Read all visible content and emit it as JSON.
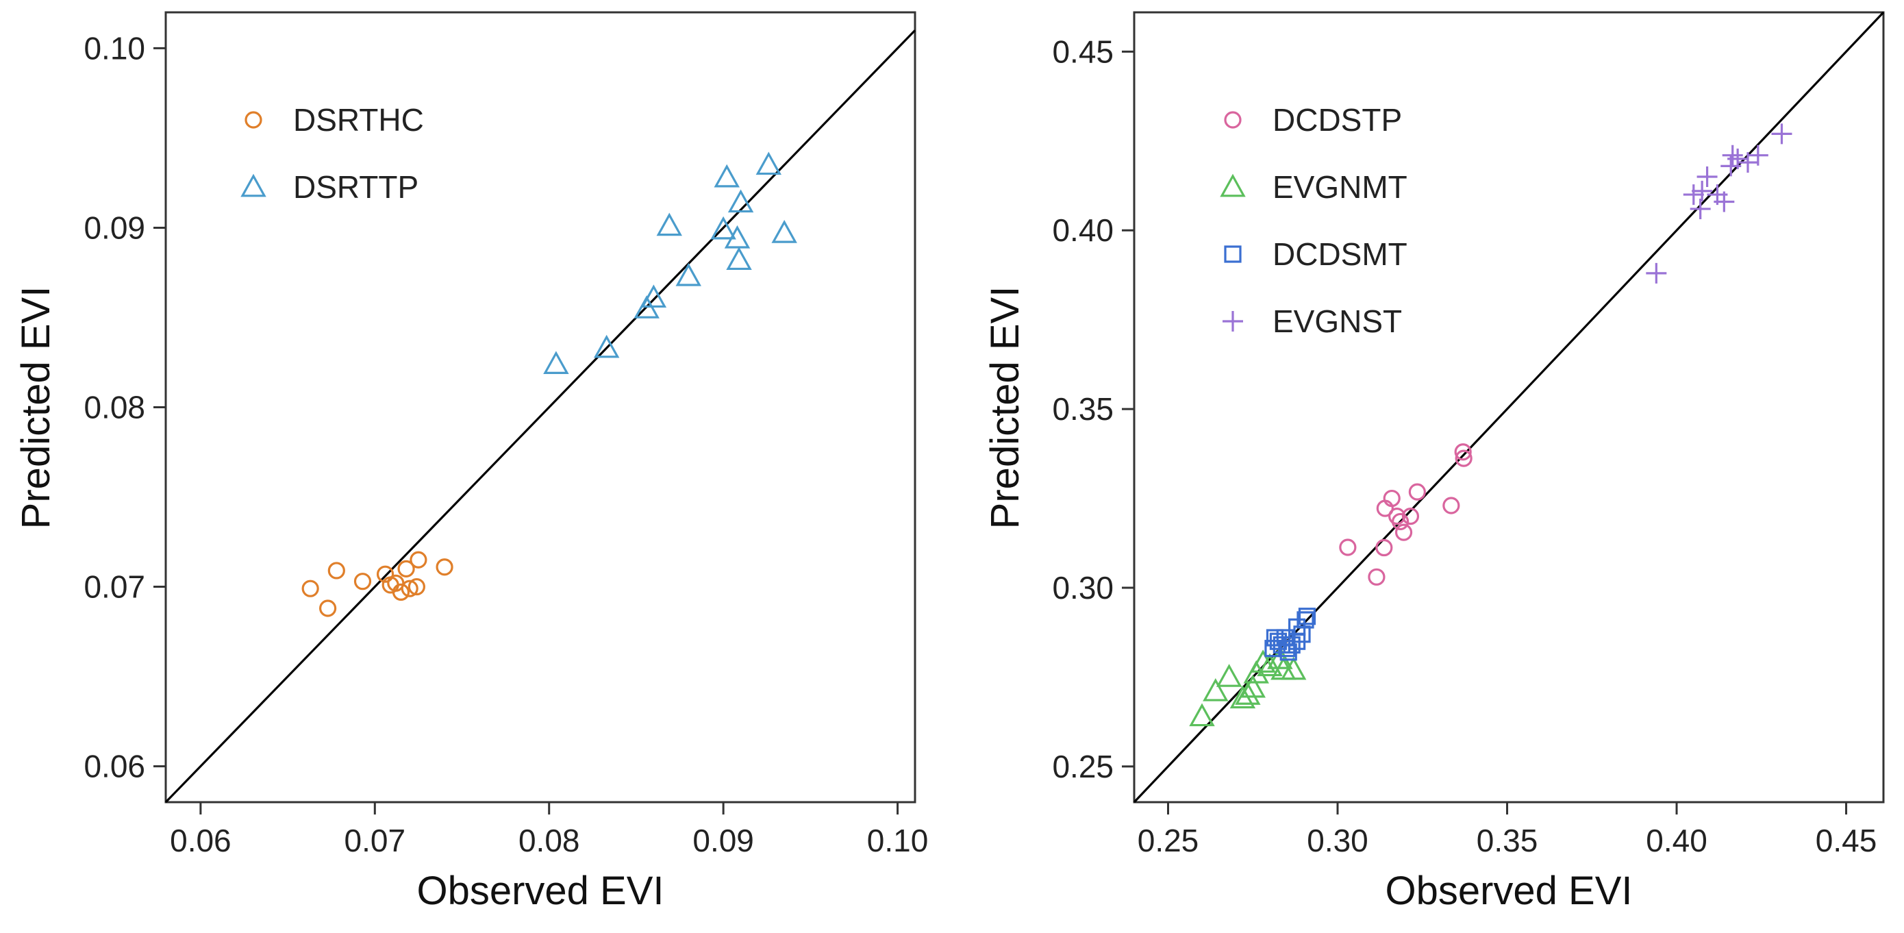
{
  "chart_data": [
    {
      "type": "scatter",
      "xlabel": "Observed EVI",
      "ylabel": "Predicted EVI",
      "xlim": [
        0.058,
        0.101
      ],
      "ylim": [
        0.058,
        0.102
      ],
      "xticks": [
        0.06,
        0.07,
        0.08,
        0.09,
        0.1
      ],
      "yticks": [
        0.06,
        0.07,
        0.08,
        0.09,
        0.1
      ],
      "tick_labels": [
        "0.06",
        "0.07",
        "0.08",
        "0.09",
        "0.10"
      ],
      "reference_line": "1:1",
      "legend_position": "top-left",
      "series": [
        {
          "name": "DSRTHC",
          "marker": "circle",
          "color": "#e07f2a",
          "points": [
            [
              0.0663,
              0.0699
            ],
            [
              0.0673,
              0.0688
            ],
            [
              0.0678,
              0.0709
            ],
            [
              0.0693,
              0.0703
            ],
            [
              0.0706,
              0.0707
            ],
            [
              0.0709,
              0.0701
            ],
            [
              0.0712,
              0.0702
            ],
            [
              0.0715,
              0.0697
            ],
            [
              0.0718,
              0.071
            ],
            [
              0.072,
              0.0699
            ],
            [
              0.0724,
              0.07
            ],
            [
              0.0725,
              0.0715
            ],
            [
              0.074,
              0.0711
            ]
          ]
        },
        {
          "name": "DSRTTP",
          "marker": "triangle",
          "color": "#4a9ccc",
          "points": [
            [
              0.0804,
              0.0824
            ],
            [
              0.0833,
              0.0833
            ],
            [
              0.0856,
              0.0855
            ],
            [
              0.086,
              0.0861
            ],
            [
              0.0869,
              0.0901
            ],
            [
              0.088,
              0.0873
            ],
            [
              0.09,
              0.0899
            ],
            [
              0.0902,
              0.0928
            ],
            [
              0.0908,
              0.0894
            ],
            [
              0.0909,
              0.0882
            ],
            [
              0.091,
              0.0914
            ],
            [
              0.0926,
              0.0935
            ],
            [
              0.0935,
              0.0897
            ]
          ]
        }
      ]
    },
    {
      "type": "scatter",
      "xlabel": "Observed EVI",
      "ylabel": "Predicted EVI",
      "xlim": [
        0.24,
        0.461
      ],
      "ylim": [
        0.24,
        0.461
      ],
      "xticks": [
        0.25,
        0.3,
        0.35,
        0.4,
        0.45
      ],
      "yticks": [
        0.25,
        0.3,
        0.35,
        0.4,
        0.45
      ],
      "tick_labels": [
        "0.25",
        "0.30",
        "0.35",
        "0.40",
        "0.45"
      ],
      "reference_line": "1:1",
      "legend_position": "top-left",
      "series": [
        {
          "name": "DCDSTP",
          "marker": "circle",
          "color": "#d9659e",
          "points": [
            [
              0.303,
              0.3113
            ],
            [
              0.3115,
              0.303
            ],
            [
              0.3137,
              0.3112
            ],
            [
              0.314,
              0.3222
            ],
            [
              0.316,
              0.325
            ],
            [
              0.3175,
              0.32
            ],
            [
              0.3185,
              0.3185
            ],
            [
              0.3195,
              0.3155
            ],
            [
              0.3215,
              0.32
            ],
            [
              0.3235,
              0.3268
            ],
            [
              0.3335,
              0.323
            ],
            [
              0.337,
              0.338
            ],
            [
              0.3372,
              0.3362
            ]
          ]
        },
        {
          "name": "EVGNMT",
          "marker": "triangle",
          "color": "#5cbf5c",
          "points": [
            [
              0.26,
              0.264
            ],
            [
              0.264,
              0.271
            ],
            [
              0.268,
              0.275
            ],
            [
              0.272,
              0.269
            ],
            [
              0.2735,
              0.27
            ],
            [
              0.275,
              0.272
            ],
            [
              0.276,
              0.276
            ],
            [
              0.278,
              0.279
            ],
            [
              0.28,
              0.278
            ],
            [
              0.283,
              0.28
            ],
            [
              0.284,
              0.277
            ],
            [
              0.287,
              0.277
            ]
          ]
        },
        {
          "name": "DCDSMT",
          "marker": "square",
          "color": "#3b6fd1",
          "points": [
            [
              0.281,
              0.283
            ],
            [
              0.2815,
              0.286
            ],
            [
              0.2825,
              0.285
            ],
            [
              0.2835,
              0.284
            ],
            [
              0.2845,
              0.286
            ],
            [
              0.285,
              0.283
            ],
            [
              0.2855,
              0.282
            ],
            [
              0.2865,
              0.284
            ],
            [
              0.288,
              0.285
            ],
            [
              0.288,
              0.289
            ],
            [
              0.2895,
              0.287
            ],
            [
              0.2905,
              0.291
            ],
            [
              0.291,
              0.292
            ]
          ]
        },
        {
          "name": "EVGNST",
          "marker": "plus",
          "color": "#9a73d6",
          "points": [
            [
              0.394,
              0.388
            ],
            [
              0.405,
              0.41
            ],
            [
              0.407,
              0.406
            ],
            [
              0.4075,
              0.411
            ],
            [
              0.409,
              0.415
            ],
            [
              0.412,
              0.41
            ],
            [
              0.414,
              0.408
            ],
            [
              0.416,
              0.418
            ],
            [
              0.4165,
              0.421
            ],
            [
              0.418,
              0.42
            ],
            [
              0.421,
              0.419
            ],
            [
              0.424,
              0.421
            ],
            [
              0.431,
              0.427
            ]
          ]
        }
      ]
    }
  ]
}
